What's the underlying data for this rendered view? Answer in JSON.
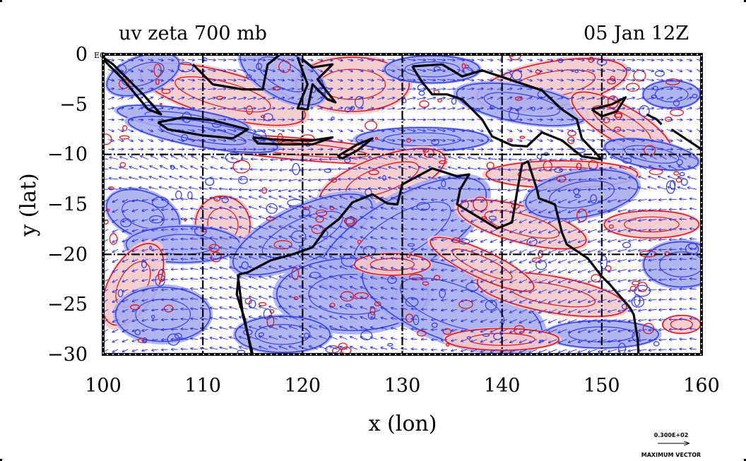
{
  "title_left": "uv zeta 700 mb",
  "title_right": "05 Jan 12Z",
  "eq_label": "EQ",
  "xlabel": "x (lon)",
  "ylabel": "y (lat)",
  "legend": {
    "vector_value": "0.300E+02",
    "vector_caption": "MAXIMUM VECTOR"
  },
  "colors": {
    "positive_fill": "#f4caca",
    "positive_contour": "#e8141a",
    "negative_fill": "#a9aef0",
    "negative_contour": "#3a44e0",
    "wind_vector": "#2a2ef0",
    "coastline": "#000000",
    "grid": "#000000"
  },
  "chart_data": {
    "type": "map",
    "x_range": [
      100,
      160
    ],
    "y_range": [
      -30,
      0
    ],
    "x_ticks": [
      100,
      110,
      120,
      130,
      140,
      150,
      160
    ],
    "x_tick_labels": [
      "100",
      "110",
      "120",
      "130",
      "140",
      "150",
      "160"
    ],
    "y_ticks": [
      0,
      -5,
      -10,
      -15,
      -20,
      -25,
      -30
    ],
    "y_tick_labels": [
      "0",
      "−5",
      "−10",
      "−15",
      "−20",
      "−25",
      "−30"
    ],
    "grid_lon": [
      110,
      120,
      130,
      140,
      150
    ],
    "grid_lat": [
      -10,
      -20
    ],
    "grid": true,
    "variables": [
      "uv",
      "zeta"
    ],
    "level": "700 mb",
    "time": "05 Jan 12Z"
  }
}
